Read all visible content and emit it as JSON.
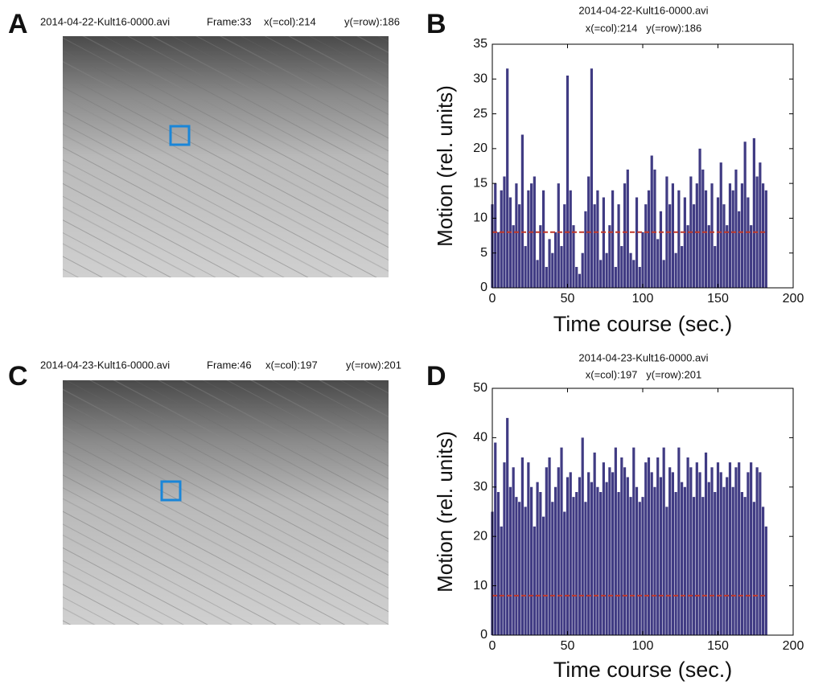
{
  "panels": [
    {
      "letter": "A",
      "file": "2014-04-22-Kult16-0000.avi",
      "frame": "Frame:33",
      "col": "x(=col):214",
      "row": "y(=row):186"
    },
    {
      "letter": "C",
      "file": "2014-04-23-Kult16-0000.avi",
      "frame": "Frame:46",
      "col": "x(=col):197",
      "row": "y(=row):201"
    }
  ],
  "chart_data": [
    {
      "type": "bar",
      "panel": "B",
      "title": "2014-04-22-Kult16-0000.avi",
      "subtitle": "x(=col):214   y(=row):186",
      "x_label": "Time course (sec.)",
      "y_label": "Motion (rel. units)",
      "color": "#1f1a6e",
      "threshold": 8,
      "threshold_color": "#c0392b",
      "xlim": [
        0,
        200
      ],
      "xticks": [
        0,
        50,
        100,
        150,
        200
      ],
      "ylim": [
        0,
        35
      ],
      "yticks": [
        0,
        5,
        10,
        15,
        20,
        25,
        30,
        35
      ],
      "x": [
        0,
        2,
        4,
        6,
        8,
        10,
        12,
        14,
        16,
        18,
        20,
        22,
        24,
        26,
        28,
        30,
        32,
        34,
        36,
        38,
        40,
        42,
        44,
        46,
        48,
        50,
        52,
        54,
        56,
        58,
        60,
        62,
        64,
        66,
        68,
        70,
        72,
        74,
        76,
        78,
        80,
        82,
        84,
        86,
        88,
        90,
        92,
        94,
        96,
        98,
        100,
        102,
        104,
        106,
        108,
        110,
        112,
        114,
        116,
        118,
        120,
        122,
        124,
        126,
        128,
        130,
        132,
        134,
        136,
        138,
        140,
        142,
        144,
        146,
        148,
        150,
        152,
        154,
        156,
        158,
        160,
        162,
        164,
        166,
        168,
        170,
        172,
        174,
        176,
        178,
        180,
        182
      ],
      "values": [
        12,
        15,
        8,
        14,
        16,
        31.5,
        13,
        9,
        15,
        12,
        22,
        6,
        14,
        15,
        16,
        4,
        9,
        14,
        3,
        7,
        5,
        8,
        15,
        6,
        12,
        30.5,
        14,
        9,
        3,
        2,
        5,
        11,
        16,
        31.5,
        12,
        14,
        4,
        13,
        5,
        9,
        14,
        3,
        12,
        6,
        15,
        17,
        5,
        4,
        13,
        3,
        8,
        12,
        14,
        19,
        17,
        7,
        11,
        4,
        16,
        12,
        15,
        5,
        14,
        6,
        13,
        9,
        16,
        12,
        15,
        20,
        17,
        14,
        9,
        15,
        6,
        13,
        18,
        12,
        9,
        15,
        14,
        17,
        11,
        15,
        21,
        13,
        9,
        21.5,
        16,
        18,
        15,
        14
      ]
    },
    {
      "type": "bar",
      "panel": "D",
      "title": "2014-04-23-Kult16-0000.avi",
      "subtitle": "x(=col):197   y(=row):201",
      "x_label": "Time course (sec.)",
      "y_label": "Motion (rel. units)",
      "color": "#1f1a6e",
      "threshold": 8,
      "threshold_color": "#c0392b",
      "xlim": [
        0,
        200
      ],
      "xticks": [
        0,
        50,
        100,
        150,
        200
      ],
      "ylim": [
        0,
        50
      ],
      "yticks": [
        0,
        10,
        20,
        30,
        40,
        50
      ],
      "x": [
        0,
        2,
        4,
        6,
        8,
        10,
        12,
        14,
        16,
        18,
        20,
        22,
        24,
        26,
        28,
        30,
        32,
        34,
        36,
        38,
        40,
        42,
        44,
        46,
        48,
        50,
        52,
        54,
        56,
        58,
        60,
        62,
        64,
        66,
        68,
        70,
        72,
        74,
        76,
        78,
        80,
        82,
        84,
        86,
        88,
        90,
        92,
        94,
        96,
        98,
        100,
        102,
        104,
        106,
        108,
        110,
        112,
        114,
        116,
        118,
        120,
        122,
        124,
        126,
        128,
        130,
        132,
        134,
        136,
        138,
        140,
        142,
        144,
        146,
        148,
        150,
        152,
        154,
        156,
        158,
        160,
        162,
        164,
        166,
        168,
        170,
        172,
        174,
        176,
        178,
        180,
        182
      ],
      "values": [
        25,
        39,
        29,
        22,
        35,
        44,
        30,
        34,
        28,
        27,
        36,
        26,
        35,
        30,
        22,
        31,
        29,
        24,
        34,
        36,
        27,
        30,
        34,
        38,
        25,
        32,
        33,
        28,
        29,
        32,
        40,
        27,
        33,
        31,
        37,
        30,
        29,
        35,
        31,
        34,
        33,
        38,
        29,
        36,
        34,
        32,
        28,
        38,
        30,
        27,
        28,
        35,
        36,
        33,
        30,
        36,
        32,
        38,
        26,
        34,
        33,
        29,
        38,
        31,
        30,
        36,
        34,
        28,
        35,
        33,
        28,
        37,
        31,
        34,
        29,
        35,
        33,
        30,
        32,
        35,
        30,
        34,
        35,
        29,
        28,
        33,
        35,
        27,
        34,
        33,
        26,
        22
      ]
    }
  ]
}
